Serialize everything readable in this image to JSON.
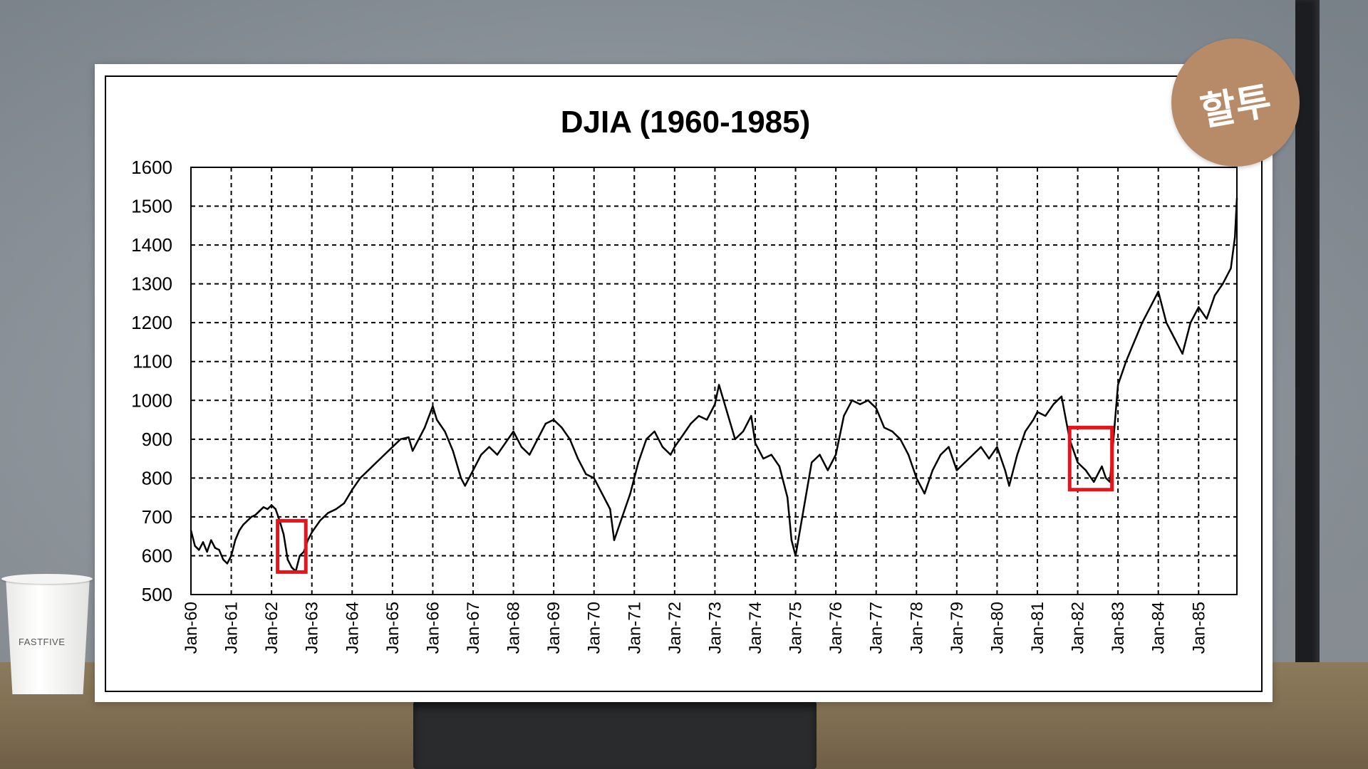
{
  "colors": {
    "line": "#000000",
    "highlight": "#e8141b",
    "badge": "#b88b68",
    "grid": "#000000"
  },
  "badge": {
    "text": "할투"
  },
  "cup": {
    "label": "FASTFIVE"
  },
  "chart_data": {
    "type": "line",
    "title": "DJIA (1960-1985)",
    "xlabel": "",
    "ylabel": "",
    "ylim": [
      500,
      1600
    ],
    "yticks": [
      500,
      600,
      700,
      800,
      900,
      1000,
      1100,
      1200,
      1300,
      1400,
      1500,
      1600
    ],
    "xlim": [
      1960.0,
      1985.95
    ],
    "xtick_labels": [
      "Jan-60",
      "Jan-61",
      "Jan-62",
      "Jan-63",
      "Jan-64",
      "Jan-65",
      "Jan-66",
      "Jan-67",
      "Jan-68",
      "Jan-69",
      "Jan-70",
      "Jan-71",
      "Jan-72",
      "Jan-73",
      "Jan-74",
      "Jan-75",
      "Jan-76",
      "Jan-77",
      "Jan-78",
      "Jan-79",
      "Jan-80",
      "Jan-81",
      "Jan-82",
      "Jan-83",
      "Jan-84",
      "Jan-85"
    ],
    "grid": true,
    "grid_style": "dashed",
    "series": [
      {
        "x": [
          1960.0,
          1960.1,
          1960.2,
          1960.3,
          1960.4,
          1960.5,
          1960.6,
          1960.7,
          1960.8,
          1960.9,
          1961.0,
          1961.1,
          1961.2,
          1961.3,
          1961.4,
          1961.5,
          1961.6,
          1961.7,
          1961.8,
          1961.9,
          1962.0,
          1962.1,
          1962.2,
          1962.3,
          1962.4,
          1962.5,
          1962.6,
          1962.7,
          1962.8,
          1962.9,
          1963.0,
          1963.2,
          1963.4,
          1963.6,
          1963.8,
          1964.0,
          1964.2,
          1964.4,
          1964.6,
          1964.8,
          1965.0,
          1965.2,
          1965.4,
          1965.5,
          1965.6,
          1965.8,
          1966.0,
          1966.1,
          1966.3,
          1966.5,
          1966.7,
          1966.8,
          1967.0,
          1967.2,
          1967.4,
          1967.6,
          1967.8,
          1968.0,
          1968.2,
          1968.4,
          1968.6,
          1968.8,
          1969.0,
          1969.2,
          1969.4,
          1969.6,
          1969.8,
          1970.0,
          1970.2,
          1970.4,
          1970.5,
          1970.7,
          1970.9,
          1971.1,
          1971.3,
          1971.5,
          1971.7,
          1971.9,
          1972.0,
          1972.2,
          1972.4,
          1972.6,
          1972.8,
          1973.0,
          1973.1,
          1973.3,
          1973.5,
          1973.7,
          1973.9,
          1974.0,
          1974.2,
          1974.4,
          1974.6,
          1974.8,
          1974.9,
          1975.0,
          1975.2,
          1975.4,
          1975.6,
          1975.8,
          1976.0,
          1976.2,
          1976.4,
          1976.6,
          1976.8,
          1977.0,
          1977.2,
          1977.4,
          1977.6,
          1977.8,
          1978.0,
          1978.2,
          1978.4,
          1978.6,
          1978.8,
          1979.0,
          1979.2,
          1979.4,
          1979.6,
          1979.8,
          1980.0,
          1980.2,
          1980.3,
          1980.5,
          1980.7,
          1980.9,
          1981.0,
          1981.2,
          1981.4,
          1981.6,
          1981.8,
          1982.0,
          1982.2,
          1982.4,
          1982.6,
          1982.7,
          1982.8,
          1983.0,
          1983.2,
          1983.4,
          1983.6,
          1983.8,
          1984.0,
          1984.2,
          1984.4,
          1984.6,
          1984.8,
          1985.0,
          1985.2,
          1985.4,
          1985.6,
          1985.8,
          1985.9,
          1985.95
        ],
        "y": [
          665,
          625,
          615,
          635,
          610,
          640,
          620,
          615,
          590,
          580,
          600,
          640,
          665,
          680,
          690,
          700,
          705,
          715,
          725,
          720,
          730,
          720,
          690,
          655,
          590,
          570,
          560,
          600,
          610,
          640,
          660,
          690,
          710,
          720,
          735,
          770,
          800,
          820,
          840,
          860,
          880,
          900,
          905,
          870,
          890,
          930,
          985,
          950,
          920,
          870,
          800,
          780,
          820,
          860,
          880,
          860,
          890,
          920,
          880,
          860,
          900,
          940,
          950,
          930,
          900,
          850,
          810,
          800,
          760,
          720,
          640,
          700,
          760,
          840,
          900,
          920,
          880,
          860,
          880,
          910,
          940,
          960,
          950,
          990,
          1040,
          970,
          900,
          920,
          960,
          890,
          850,
          860,
          830,
          750,
          640,
          600,
          720,
          840,
          860,
          820,
          860,
          960,
          1000,
          990,
          1000,
          980,
          930,
          920,
          900,
          860,
          800,
          760,
          820,
          860,
          880,
          820,
          840,
          860,
          880,
          850,
          880,
          820,
          780,
          860,
          920,
          950,
          970,
          960,
          990,
          1010,
          900,
          840,
          820,
          790,
          830,
          800,
          790,
          1040,
          1100,
          1150,
          1200,
          1240,
          1280,
          1200,
          1160,
          1120,
          1200,
          1240,
          1210,
          1270,
          1300,
          1340,
          1420,
          1520
        ]
      }
    ],
    "annotations": [
      {
        "type": "rect",
        "x0": 1962.15,
        "x1": 1962.85,
        "y0": 558,
        "y1": 690
      },
      {
        "type": "rect",
        "x0": 1981.8,
        "x1": 1982.85,
        "y0": 770,
        "y1": 930
      }
    ]
  }
}
